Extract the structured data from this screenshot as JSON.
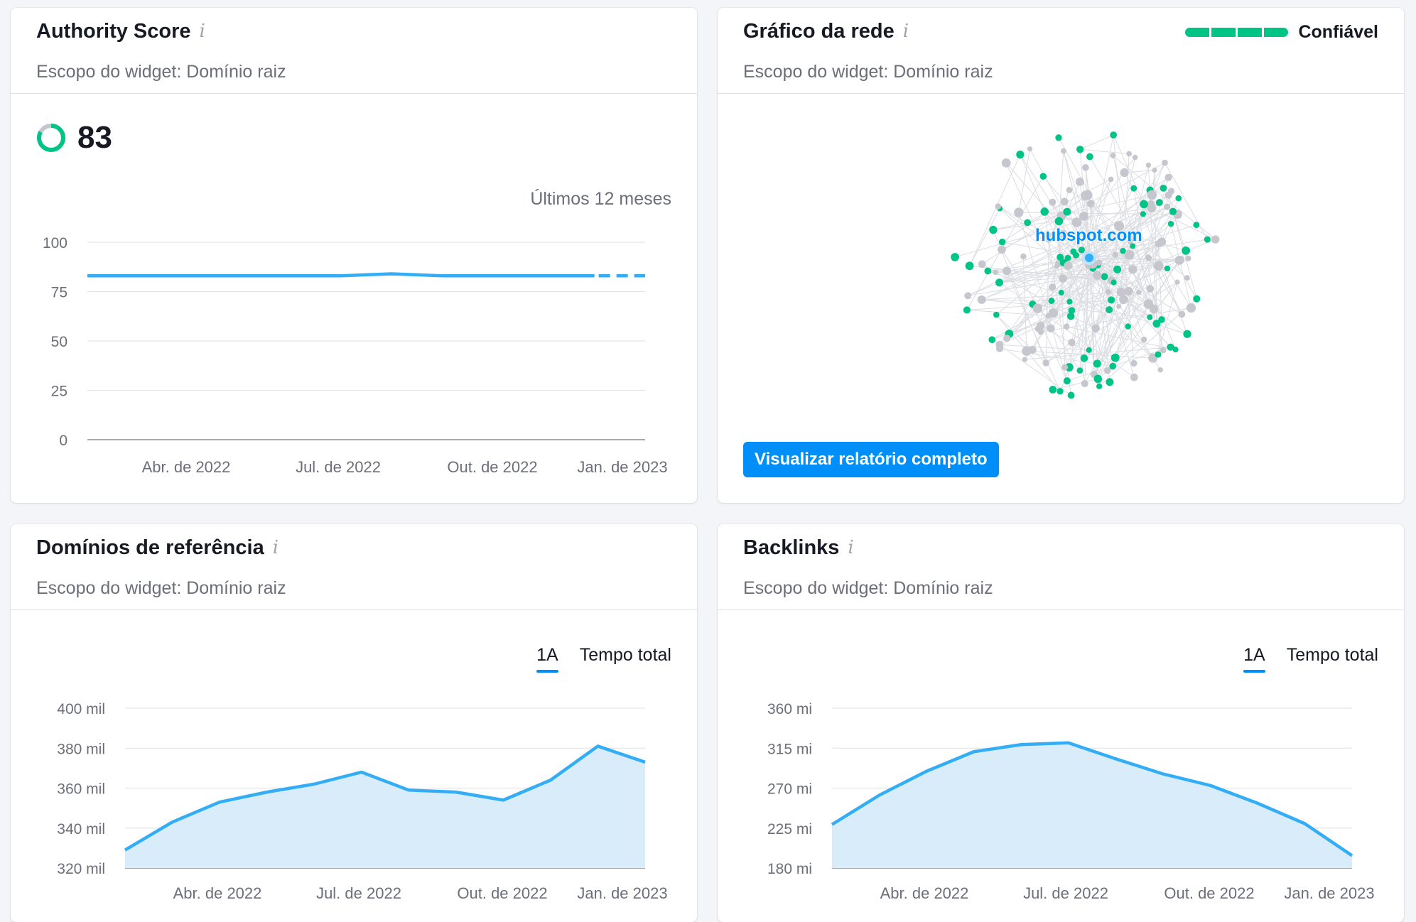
{
  "colors": {
    "accent_blue": "#33adf6",
    "area_fill": "#d9ecfa",
    "trust_green": "#00c386",
    "node_green": "#00c386",
    "node_gray": "#c6c7ce",
    "button_blue": "#008ff8"
  },
  "authority": {
    "title": "Authority Score",
    "info_icon": "info-icon",
    "scope": "Escopo do widget: Domínio raiz",
    "score": "83",
    "period": "Últimos 12 meses"
  },
  "network": {
    "title": "Gráfico da rede",
    "info_icon": "info-icon",
    "scope": "Escopo do widget: Domínio raiz",
    "trust_label": "Confiável",
    "trust_level": 1.0,
    "center_label": "hubspot.com",
    "button": "Visualizar relatório completo"
  },
  "domains": {
    "title": "Domínios de referência",
    "info_icon": "info-icon",
    "scope": "Escopo do widget: Domínio raiz",
    "toggle_1": "1A",
    "toggle_2": "Tempo total"
  },
  "backlinks": {
    "title": "Backlinks",
    "info_icon": "info-icon",
    "scope": "Escopo do widget: Domínio raiz",
    "toggle_1": "1A",
    "toggle_2": "Tempo total"
  },
  "chart_data": [
    {
      "id": "authority",
      "type": "line",
      "yticks": [
        "100",
        "75",
        "50",
        "25",
        "0"
      ],
      "ylim": [
        0,
        100
      ],
      "xtick_labels": [
        "Abr. de 2022",
        "Jul. de 2022",
        "Out. de 2022",
        "Jan. de 2023"
      ],
      "x": [
        0,
        1,
        2,
        3,
        4,
        5,
        6,
        7,
        8,
        9,
        10,
        11
      ],
      "values": [
        83,
        83,
        83,
        83,
        83,
        83,
        84,
        83,
        83,
        83,
        83,
        83
      ],
      "forecast_last_segment": true,
      "grid": true
    },
    {
      "id": "domains",
      "type": "area",
      "yticks": [
        "400 mil",
        "380 mil",
        "360 mil",
        "340 mil",
        "320 mil"
      ],
      "ylim": [
        320000,
        400000
      ],
      "xtick_labels": [
        "Abr. de 2022",
        "Jul. de 2022",
        "Out. de 2022",
        "Jan. de 2023"
      ],
      "x": [
        0,
        1,
        2,
        3,
        4,
        5,
        6,
        7,
        8,
        9,
        10,
        11
      ],
      "values": [
        329000,
        343000,
        353000,
        358000,
        362000,
        368000,
        359000,
        358000,
        354000,
        364000,
        381000,
        373000
      ],
      "grid": true
    },
    {
      "id": "backlinks",
      "type": "area",
      "yticks": [
        "360 mi",
        "315 mi",
        "270 mi",
        "225 mi",
        "180 mi"
      ],
      "ylim": [
        180,
        360
      ],
      "xtick_labels": [
        "Abr. de 2022",
        "Jul. de 2022",
        "Out. de 2022",
        "Jan. de 2023"
      ],
      "x": [
        0,
        1,
        2,
        3,
        4,
        5,
        6,
        7,
        8,
        9,
        10,
        11
      ],
      "values": [
        229,
        262,
        289,
        311,
        319,
        321,
        303,
        286,
        273,
        253,
        230,
        194
      ],
      "grid": true
    }
  ]
}
